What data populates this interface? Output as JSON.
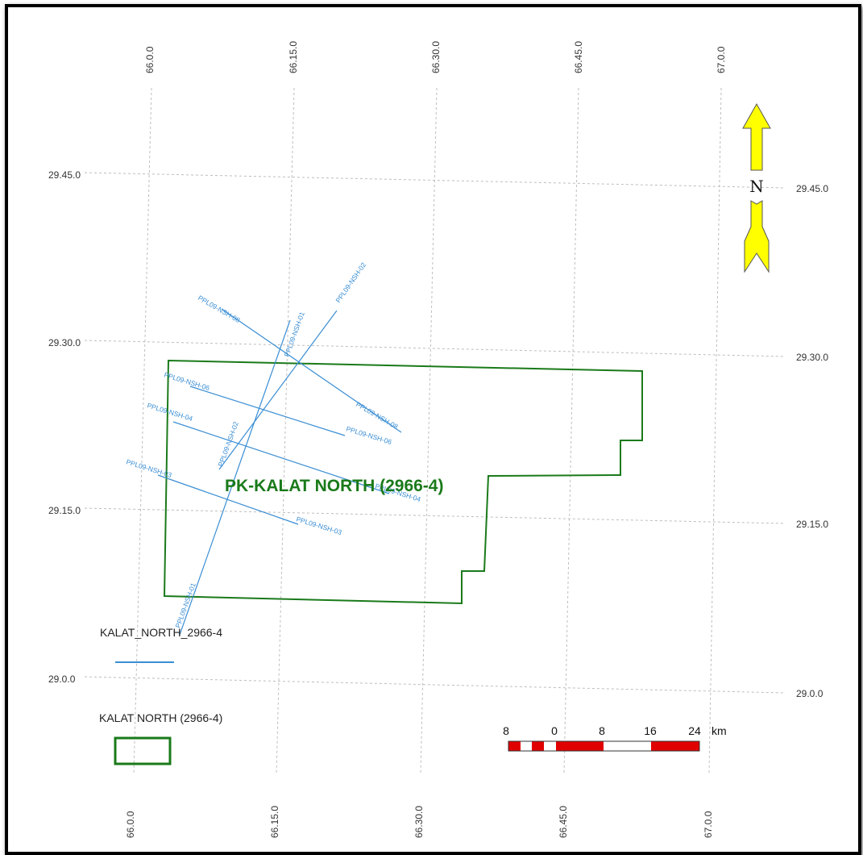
{
  "map": {
    "longitude_ticks": [
      "66.0.0",
      "66.15.0",
      "66.30.0",
      "66.45.0",
      "67.0.0"
    ],
    "latitude_ticks": [
      "29.45.0",
      "29.30.0",
      "29.15.0",
      "29.0.0"
    ],
    "block_label": "PK-KALAT NORTH (2966-4)",
    "north_label": "N",
    "colors": {
      "block": "#1a7a1a",
      "seismic": "#3a8ed4",
      "arrow": "#ffff00",
      "scale_red": "#e00000"
    }
  },
  "seismic_lines": [
    {
      "id": "PPL09-NSH-01",
      "labels": [
        "PPL09-NSH-01",
        "PPL09-NSH-01"
      ]
    },
    {
      "id": "PPL09-NSH-02",
      "labels": [
        "PPL09-NSH-02",
        "PPL09-NSH-02"
      ]
    },
    {
      "id": "PPL09-NSH-03",
      "labels": [
        "PPL09-NSH-03",
        "PPL09-NSH-03"
      ]
    },
    {
      "id": "PPL09-NSH-04",
      "labels": [
        "PPL09-NSH-04",
        "PPL09-NSH-04"
      ]
    },
    {
      "id": "PPL09-NSH-06",
      "labels": [
        "PPL09-NSH-06",
        "PPL09-NSH-06"
      ]
    },
    {
      "id": "PPL09-NSH-08",
      "labels": [
        "PPL09-NSH-08",
        "PPL09-NSH-08"
      ]
    }
  ],
  "legend": {
    "lines_label": "KALAT_NORTH_2966-4",
    "block_label": "KALAT NORTH (2966-4)"
  },
  "scale_bar": {
    "labels": [
      "8",
      "0",
      "8",
      "16",
      "24"
    ],
    "unit": "km"
  }
}
